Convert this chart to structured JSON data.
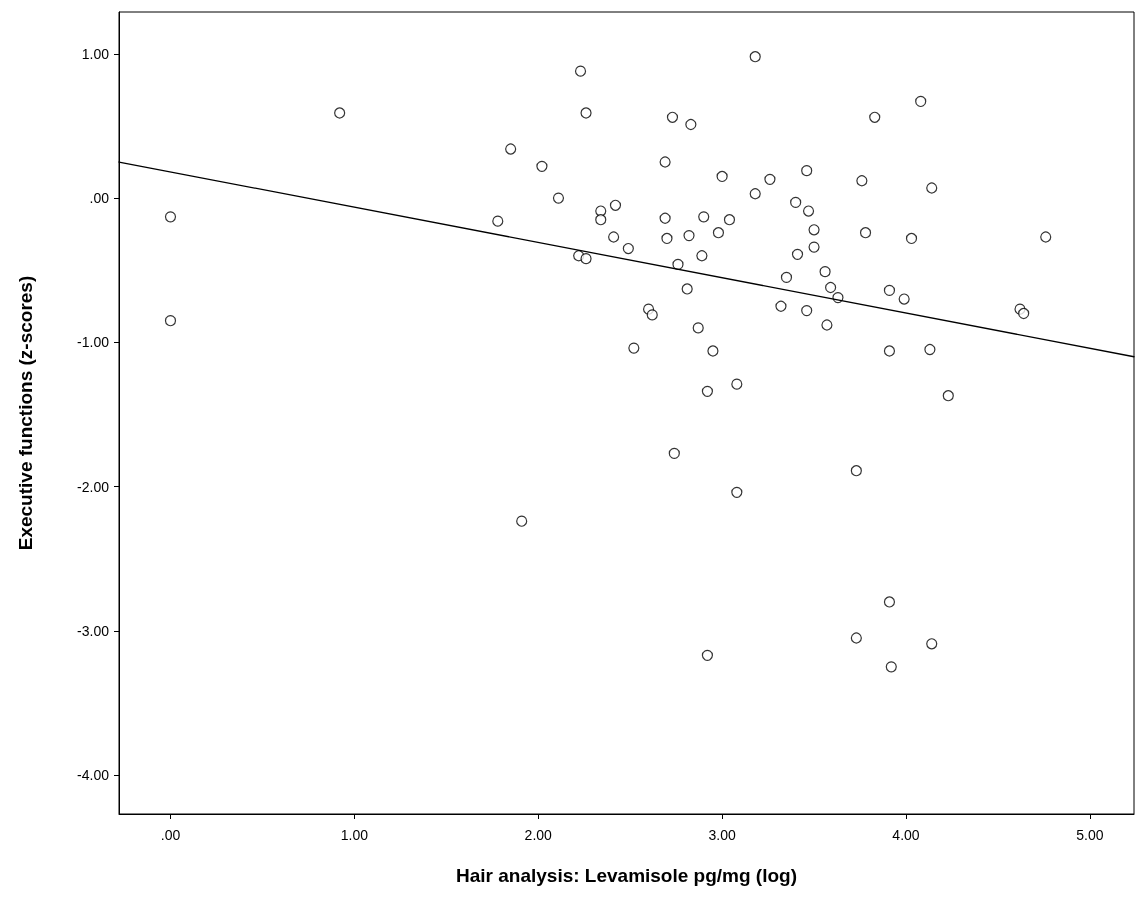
{
  "chart_data": {
    "type": "scatter",
    "xlabel": "Hair analysis: Levamisole pg/mg (log)",
    "ylabel": "Executive functions (z-scores)",
    "xlim": [
      -0.28,
      5.24
    ],
    "ylim": [
      -4.27,
      1.29
    ],
    "xticks": [
      {
        "value": 0,
        "label": ".00"
      },
      {
        "value": 1,
        "label": "1.00"
      },
      {
        "value": 2,
        "label": "2.00"
      },
      {
        "value": 3,
        "label": "3.00"
      },
      {
        "value": 4,
        "label": "4.00"
      },
      {
        "value": 5,
        "label": "5.00"
      }
    ],
    "yticks": [
      {
        "value": -4,
        "label": "-4.00"
      },
      {
        "value": -3,
        "label": "-3.00"
      },
      {
        "value": -2,
        "label": "-2.00"
      },
      {
        "value": -1,
        "label": "-1.00"
      },
      {
        "value": 0,
        "label": ".00"
      },
      {
        "value": 1,
        "label": "1.00"
      }
    ],
    "grid": false,
    "marker": "circle",
    "series": [
      {
        "color": "#000000",
        "x": [
          0.0,
          0.0,
          0.92,
          1.78,
          1.85,
          1.91,
          2.02,
          2.11,
          2.23,
          2.26,
          2.22,
          2.26,
          2.34,
          2.34,
          2.42,
          2.41,
          2.49,
          2.52,
          2.6,
          2.62,
          2.69,
          2.69,
          2.7,
          2.73,
          2.74,
          2.76,
          2.81,
          2.82,
          2.83,
          2.87,
          2.89,
          2.9,
          2.92,
          2.92,
          2.95,
          2.98,
          3.0,
          3.04,
          3.08,
          3.08,
          3.18,
          3.18,
          3.26,
          3.32,
          3.35,
          3.4,
          3.41,
          3.46,
          3.46,
          3.47,
          3.5,
          3.5,
          3.56,
          3.57,
          3.59,
          3.63,
          3.73,
          3.73,
          3.76,
          3.78,
          3.83,
          3.91,
          3.91,
          3.91,
          3.92,
          3.99,
          4.03,
          4.08,
          4.13,
          4.14,
          4.14,
          4.23,
          4.62,
          4.64,
          4.76
        ],
        "values": [
          -0.13,
          -0.85,
          0.59,
          -0.16,
          0.34,
          -2.24,
          0.22,
          0.0,
          0.88,
          0.59,
          -0.4,
          -0.42,
          -0.09,
          -0.15,
          -0.05,
          -0.27,
          -0.35,
          -1.04,
          -0.77,
          -0.81,
          -0.14,
          0.25,
          -0.28,
          0.56,
          -1.77,
          -0.46,
          -0.63,
          -0.26,
          0.51,
          -0.9,
          -0.4,
          -0.13,
          -1.34,
          -3.17,
          -1.06,
          -0.24,
          0.15,
          -0.15,
          -1.29,
          -2.04,
          0.98,
          0.03,
          0.13,
          -0.75,
          -0.55,
          -0.03,
          -0.39,
          0.19,
          -0.78,
          -0.09,
          -0.22,
          -0.34,
          -0.51,
          -0.88,
          -0.62,
          -0.69,
          -1.89,
          -3.05,
          0.12,
          -0.24,
          0.56,
          -0.64,
          -1.06,
          -2.8,
          -3.25,
          -0.7,
          -0.28,
          0.67,
          -1.05,
          0.07,
          -3.09,
          -1.37,
          -0.77,
          -0.8,
          -0.27
        ]
      },
      {
        "type": "line",
        "color": "#000000",
        "marker": "none",
        "line_style": "solid",
        "x": [
          -0.28,
          5.24
        ],
        "values": [
          0.25,
          -1.1
        ]
      }
    ]
  }
}
